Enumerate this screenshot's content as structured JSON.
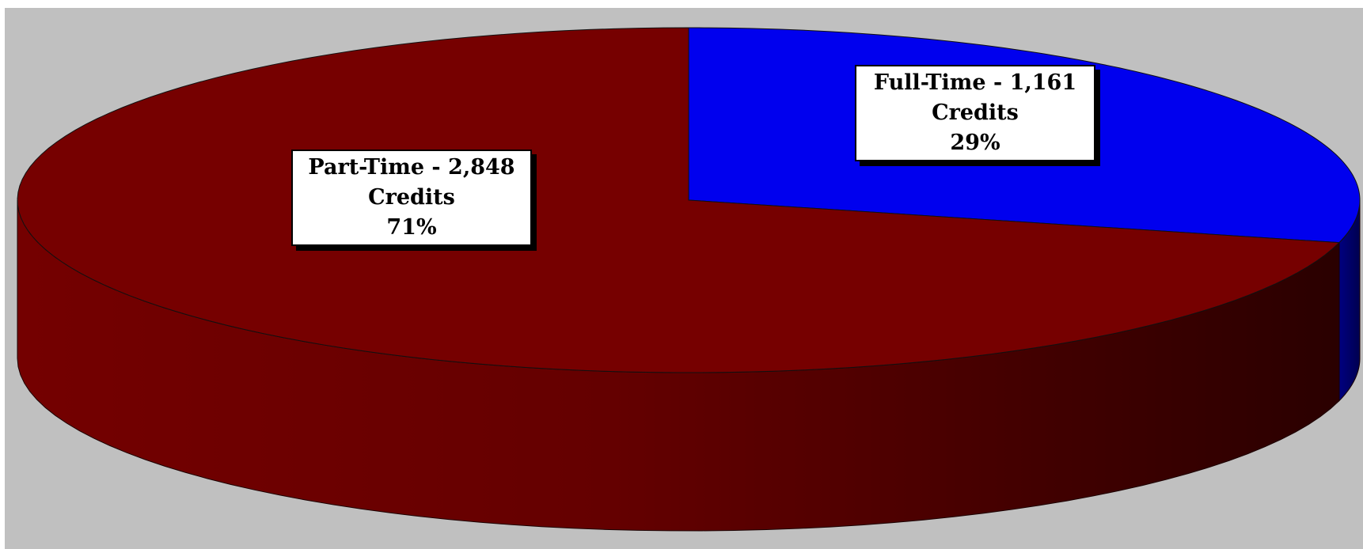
{
  "chart_data": {
    "type": "pie",
    "title": "",
    "slices": [
      {
        "label": "Full-Time",
        "value": 1161,
        "value_text": "1,161",
        "unit": "Credits",
        "percent": 29,
        "percent_text": "29%",
        "color": "#0000ee"
      },
      {
        "label": "Part-Time",
        "value": 2848,
        "value_text": "2,848",
        "unit": "Credits",
        "percent": 71,
        "percent_text": "71%",
        "color": "#760000"
      }
    ],
    "style": "3d",
    "background_color": "#c0c0c0",
    "legend": "none"
  }
}
